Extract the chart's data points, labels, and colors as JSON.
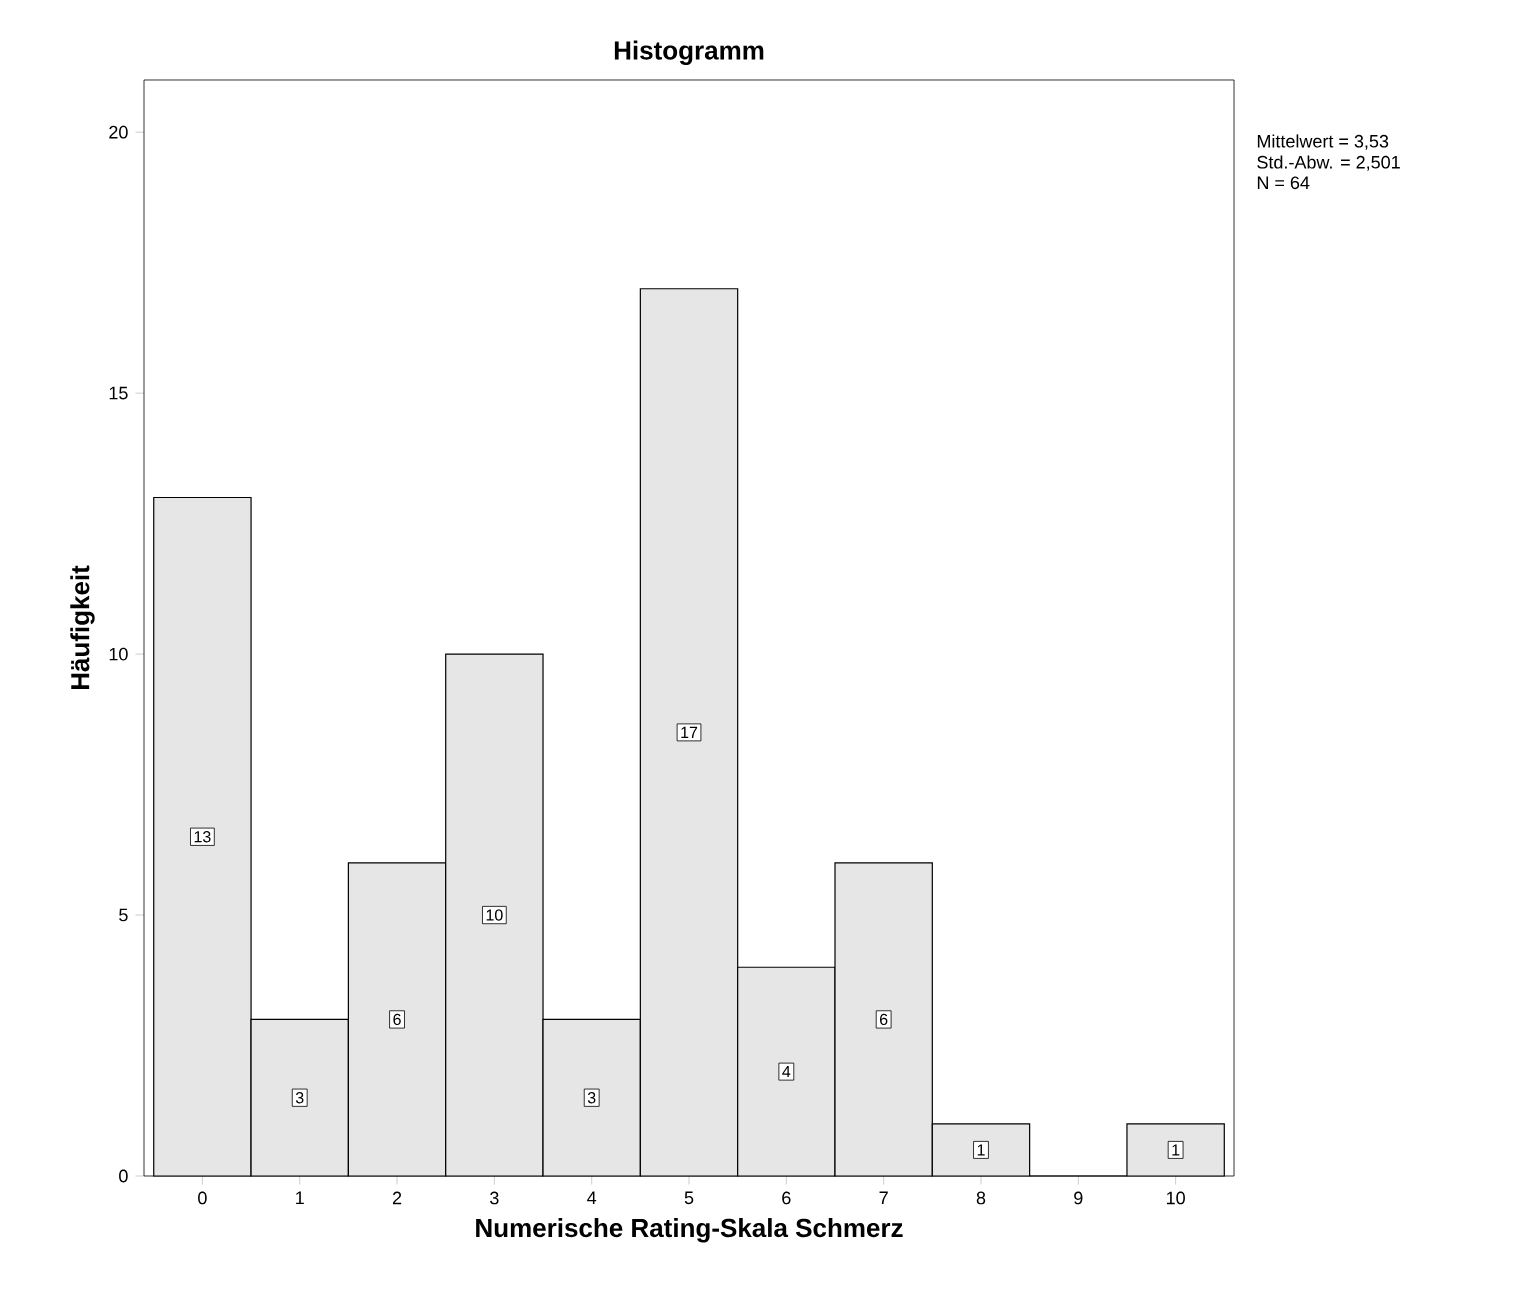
{
  "chart_data": {
    "type": "histogram",
    "title": "Histogramm",
    "xlabel": "Numerische Rating-Skala Schmerz",
    "ylabel": "Häufigkeit",
    "bins": [
      -0.5,
      0.5,
      1.5,
      2.5,
      3.5,
      4.5,
      5.5,
      6.5,
      7.5,
      8.5,
      9.5,
      10.5
    ],
    "values": [
      13,
      3,
      6,
      10,
      3,
      17,
      4,
      6,
      1,
      0,
      1
    ],
    "value_labels": [
      "13",
      "3",
      "6",
      "10",
      "3",
      "17",
      "4",
      "6",
      "1",
      null,
      "1"
    ],
    "color": "#e6e6e6",
    "xlim": [
      -0.6,
      10.6
    ],
    "ylim": [
      0,
      21
    ],
    "xticks": [
      0,
      1,
      2,
      3,
      4,
      5,
      6,
      7,
      8,
      9,
      10
    ],
    "yticks": [
      0,
      5,
      10,
      15,
      20
    ],
    "annotations": [
      "Mittelwert = 3,53",
      "Std.-Abw. = 2,501",
      "N = 64"
    ]
  }
}
